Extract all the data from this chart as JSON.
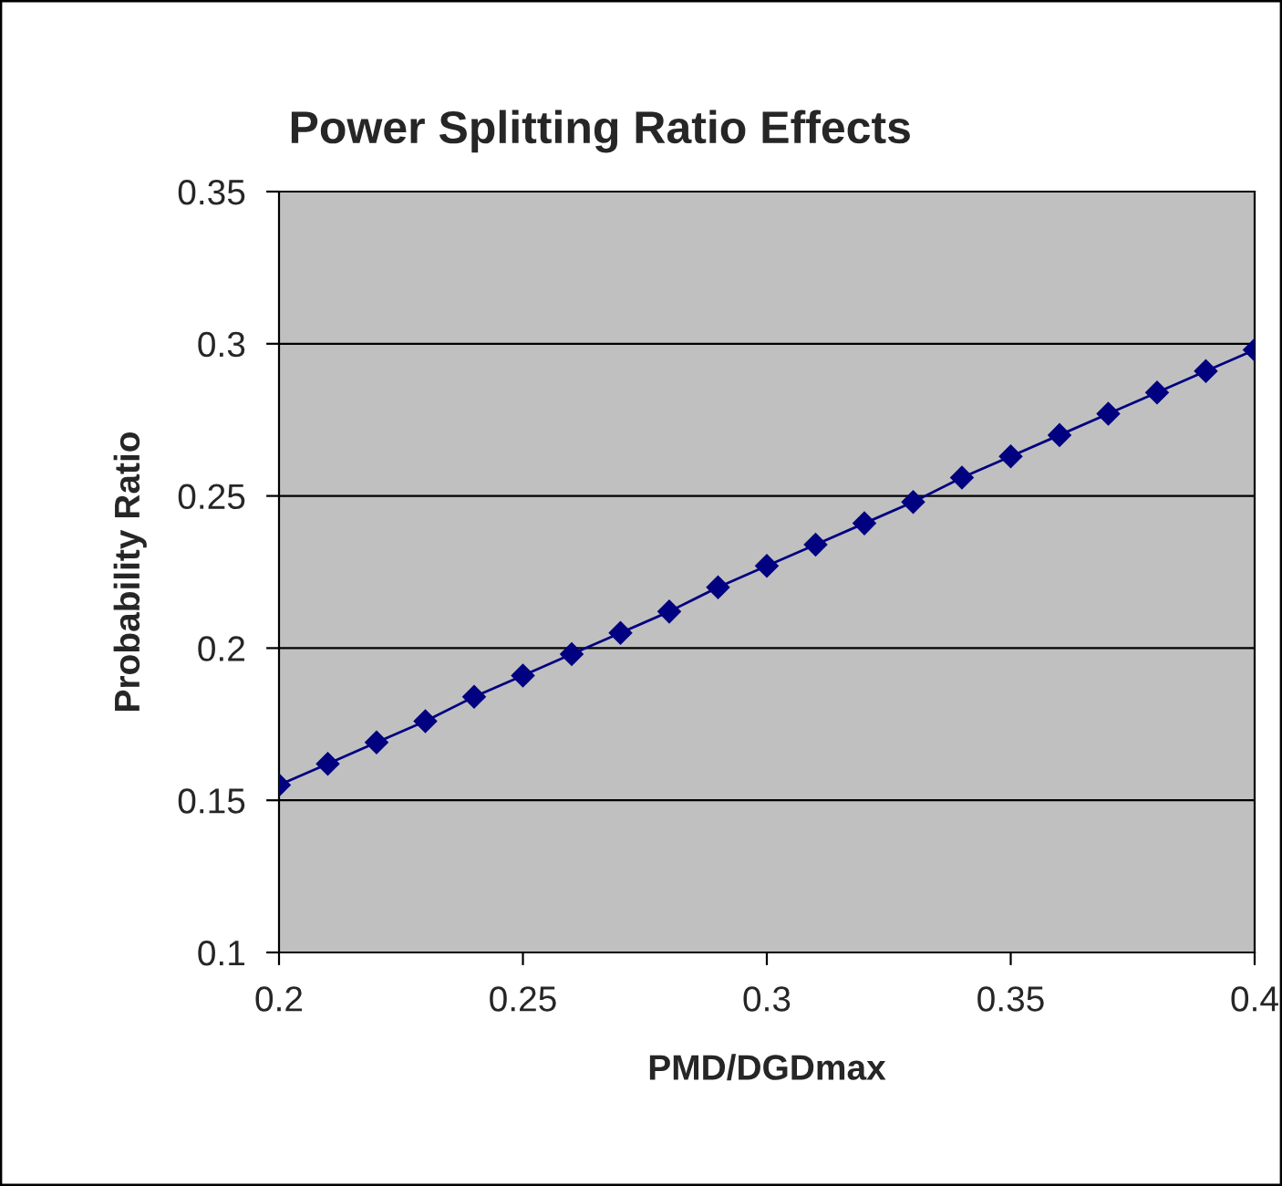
{
  "chart_data": {
    "type": "line",
    "title": "Power Splitting Ratio Effects",
    "xlabel": "PMD/DGDmax",
    "ylabel": "Probability Ratio",
    "x": [
      0.2,
      0.21,
      0.22,
      0.23,
      0.24,
      0.25,
      0.26,
      0.27,
      0.28,
      0.29,
      0.3,
      0.31,
      0.32,
      0.33,
      0.34,
      0.35,
      0.36,
      0.37,
      0.38,
      0.39,
      0.4
    ],
    "series": [
      {
        "color": "#000080",
        "values": [
          0.155,
          0.162,
          0.169,
          0.176,
          0.184,
          0.191,
          0.198,
          0.205,
          0.212,
          0.22,
          0.227,
          0.234,
          0.241,
          0.248,
          0.256,
          0.263,
          0.27,
          0.277,
          0.284,
          0.291,
          0.298
        ]
      }
    ],
    "xlim": [
      0.2,
      0.4
    ],
    "xticks": [
      0.2,
      0.25,
      0.3,
      0.35,
      0.4
    ],
    "ylim": [
      0.1,
      0.35
    ],
    "yticks": [
      0.1,
      0.15,
      0.2,
      0.25,
      0.3,
      0.35
    ],
    "grid": "y",
    "legend": false,
    "marker": "diamond",
    "line_style": "solid"
  }
}
